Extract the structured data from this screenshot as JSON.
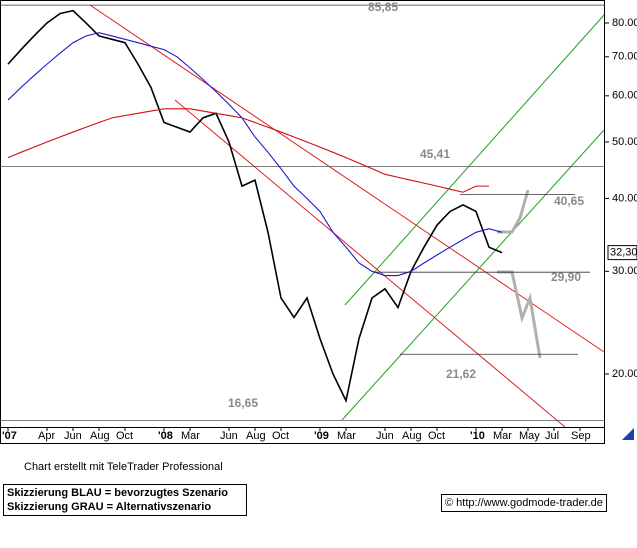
{
  "chart_data": {
    "type": "line",
    "log_scale": true,
    "categories": [
      "'07",
      null,
      null,
      "Apr",
      null,
      "Jun",
      null,
      "Aug",
      null,
      "Oct",
      null,
      null,
      "'08",
      null,
      "Mar",
      null,
      null,
      "Jun",
      null,
      "Aug",
      null,
      "Oct",
      null,
      null,
      "'09",
      null,
      "Mar",
      null,
      null,
      "Jun",
      null,
      "Aug",
      null,
      "Oct",
      null,
      null,
      "'10",
      null,
      "Mar",
      null,
      "May",
      null,
      "Jul",
      null,
      "Sep"
    ],
    "series": [
      {
        "color": "#000000",
        "values": [
          68,
          72,
          76,
          80,
          83,
          84,
          80,
          76,
          75,
          74,
          68,
          62,
          54,
          53,
          52,
          55,
          56,
          50,
          42,
          43,
          35,
          27,
          25,
          27,
          23,
          20,
          18,
          23,
          27,
          28,
          26,
          30,
          33,
          36,
          38,
          39,
          38,
          33,
          32.3,
          null,
          null,
          null,
          null,
          null,
          null
        ]
      },
      {
        "color": "#1a1acc",
        "values": [
          59,
          62,
          65,
          68,
          71,
          74,
          76,
          77,
          76,
          75,
          74,
          73,
          72,
          70,
          67,
          64,
          61,
          58,
          55,
          51,
          48,
          45,
          42,
          40,
          38,
          35,
          33,
          31,
          30,
          29.5,
          29.5,
          30,
          31,
          32,
          33,
          34,
          35,
          35.5,
          35,
          null,
          null,
          null,
          null,
          null,
          null
        ]
      },
      {
        "color": "#cc1010",
        "values": [
          47,
          48,
          49,
          50,
          51,
          52,
          53,
          54,
          55,
          55.5,
          56,
          56.5,
          57,
          57,
          57,
          56.5,
          56,
          55.5,
          55,
          54,
          53,
          52,
          51,
          50,
          49,
          48,
          47,
          46,
          45,
          44,
          43.5,
          43,
          42.5,
          42,
          41.5,
          41,
          42,
          42,
          null,
          null,
          null,
          null,
          null,
          null,
          null
        ]
      }
    ],
    "ylim": [
      16.35,
      87.6
    ],
    "yticks": [
      {
        "value": 20,
        "label": "20.00"
      },
      {
        "value": 30,
        "label": "30.00"
      },
      {
        "value": 40,
        "label": "40.00"
      },
      {
        "value": 50,
        "label": "50.00"
      },
      {
        "value": 60,
        "label": "60.00"
      },
      {
        "value": 70,
        "label": "70.00"
      },
      {
        "value": 80,
        "label": "80.00"
      }
    ],
    "levels": [
      {
        "value": 85.85,
        "label": "85,85"
      },
      {
        "value": 45.41,
        "label": "45,41"
      },
      {
        "value": 40.65,
        "label": "40,65"
      },
      {
        "value": 29.9,
        "label": "29,90"
      },
      {
        "value": 21.62,
        "label": "21,62"
      },
      {
        "value": 16.65,
        "label": "16,65"
      }
    ],
    "last_price": {
      "value": 32.3,
      "label": "32,30"
    },
    "credit": "Chart erstellt mit TeleTrader Professional",
    "legend_notes": [
      "Skizzierung BLAU = bevorzugtes Szenario",
      "Skizzierung GRAU = Alternativszenario"
    ],
    "source": "© http://www.godmode-trader.de"
  }
}
